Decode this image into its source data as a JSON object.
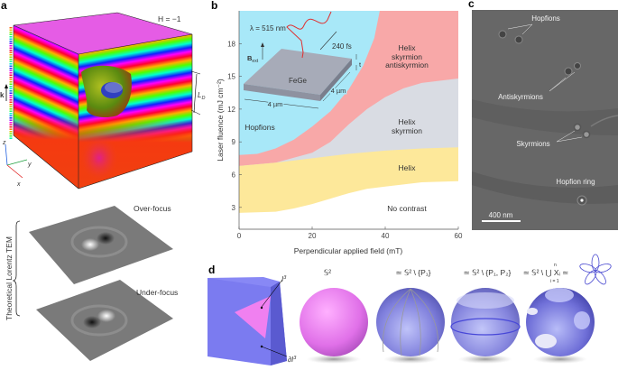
{
  "panels": {
    "a": {
      "label": "a",
      "hopf_index": "H = −1",
      "k_label": "k",
      "ld_label": "L",
      "ld_sub": "D",
      "axes": {
        "z": "z",
        "y": "y",
        "x": "x"
      },
      "over_focus": "Over-focus",
      "under_focus": "Under-focus",
      "side_label": "Theoretical Lorentz TEM"
    },
    "b": {
      "label": "b",
      "inset": {
        "wavelength": "λ = 515 nm",
        "pulse": "240 fs",
        "field": "B",
        "field_sub": "ext",
        "thickness": "t",
        "material": "FeGe",
        "width1": "4 µm",
        "width2": "4 µm"
      }
    },
    "c": {
      "label": "c",
      "annotations": [
        "Hopfions",
        "Antiskyrmions",
        "Skyrmions",
        "Hopfion ring"
      ],
      "scale_bar": "400 nm"
    },
    "d": {
      "label": "d",
      "cube_interior": "I",
      "cube_boundary": "∂I",
      "exp": "3",
      "sphere_labels": [
        "𝕊²",
        "≃ 𝕊² \\ {P₁}",
        "≃ 𝕊² \\ {P₁, P₂}",
        "≃ 𝕊² \\ ⋃ Xᵢ ≃"
      ],
      "union_top": "n",
      "union_bottom": "i = 1"
    }
  },
  "chart_data": {
    "type": "area",
    "xlabel": "Perpendicular applied field (mT)",
    "ylabel": "Laser fluence (mJ cm⁻²)",
    "xlim": [
      0,
      60
    ],
    "ylim": [
      1,
      21
    ],
    "xticks": [
      0,
      20,
      40,
      60
    ],
    "yticks": [
      3,
      6,
      9,
      12,
      15,
      18
    ],
    "grid": false,
    "regions": [
      {
        "name": "Hopfions",
        "color": "#a8e8f8"
      },
      {
        "name": "Helix skyrmion antiskyrmion",
        "lines": [
          "Helix",
          "skyrmion",
          "antiskyrmion"
        ],
        "color": "#f8a8a8"
      },
      {
        "name": "Helix skyrmion",
        "lines": [
          "Helix",
          "skyrmion"
        ],
        "color": "#d9dce3"
      },
      {
        "name": "Helix",
        "color": "#fde89a"
      },
      {
        "name": "No contrast",
        "color": "#ffffff"
      }
    ],
    "boundaries": {
      "hopfions_upper": [
        [
          0,
          7.8
        ],
        [
          5,
          7.9
        ],
        [
          10,
          8.4
        ],
        [
          15,
          9.2
        ],
        [
          20,
          10.4
        ],
        [
          25,
          11.8
        ],
        [
          30,
          13.8
        ],
        [
          34,
          16.0
        ],
        [
          37,
          18.5
        ],
        [
          38.5,
          21
        ]
      ],
      "skyrmion_upper": [
        [
          0,
          6.8
        ],
        [
          10,
          7.1
        ],
        [
          20,
          8.0
        ],
        [
          25,
          9.0
        ],
        [
          30,
          10.6
        ],
        [
          35,
          12.0
        ],
        [
          40,
          13.1
        ],
        [
          45,
          13.9
        ],
        [
          50,
          14.4
        ],
        [
          60,
          14.8
        ]
      ],
      "helix_upper": [
        [
          0,
          6.8
        ],
        [
          10,
          7.1
        ],
        [
          20,
          7.5
        ],
        [
          30,
          7.9
        ],
        [
          40,
          8.2
        ],
        [
          50,
          8.4
        ],
        [
          60,
          8.5
        ]
      ],
      "no_contrast_upper": [
        [
          0,
          2.5
        ],
        [
          10,
          2.6
        ],
        [
          15,
          2.9
        ],
        [
          20,
          3.3
        ],
        [
          25,
          3.8
        ],
        [
          30,
          4.3
        ],
        [
          35,
          4.7
        ],
        [
          40,
          4.9
        ],
        [
          50,
          5.3
        ],
        [
          60,
          5.4
        ]
      ]
    }
  }
}
